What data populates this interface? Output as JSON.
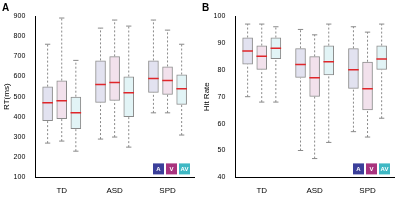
{
  "chart_data": [
    {
      "type": "box",
      "title": "A",
      "y_label": "RT(ms)",
      "categories": [
        "TD",
        "ASD",
        "SPD"
      ],
      "ylim": [
        100,
        900
      ],
      "yticks": [
        100,
        200,
        300,
        400,
        500,
        600,
        700,
        800,
        900
      ],
      "grid": false,
      "legend": "lower right",
      "series": [
        {
          "name": "A",
          "color": "#3b3f9a",
          "boxes": [
            {
              "low": 270,
              "q1": 380,
              "median": 470,
              "q3": 550,
              "high": 760
            },
            {
              "low": 290,
              "q1": 470,
              "median": 560,
              "q3": 680,
              "high": 840
            },
            {
              "low": 420,
              "q1": 520,
              "median": 590,
              "q3": 680,
              "high": 880
            }
          ]
        },
        {
          "name": "V",
          "color": "#a8337e",
          "boxes": [
            {
              "low": 280,
              "q1": 390,
              "median": 480,
              "q3": 580,
              "high": 890
            },
            {
              "low": 300,
              "q1": 480,
              "median": 570,
              "q3": 700,
              "high": 880
            },
            {
              "low": 420,
              "q1": 510,
              "median": 580,
              "q3": 650,
              "high": 830
            }
          ]
        },
        {
          "name": "AV",
          "color": "#3fb8c4",
          "boxes": [
            {
              "low": 230,
              "q1": 340,
              "median": 420,
              "q3": 500,
              "high": 680
            },
            {
              "low": 250,
              "q1": 400,
              "median": 520,
              "q3": 600,
              "high": 850
            },
            {
              "low": 310,
              "q1": 460,
              "median": 540,
              "q3": 610,
              "high": 760
            }
          ]
        }
      ]
    },
    {
      "type": "box",
      "title": "B",
      "y_label": "Hit Rate",
      "categories": [
        "TD",
        "ASD",
        "SPD"
      ],
      "ylim": [
        40,
        100
      ],
      "yticks": [
        40,
        50,
        60,
        70,
        80,
        90,
        100
      ],
      "grid": false,
      "legend": "lower right",
      "series": [
        {
          "name": "A",
          "color": "#3b3f9a",
          "boxes": [
            {
              "low": 70,
              "q1": 82,
              "median": 87,
              "q3": 92,
              "high": 97
            },
            {
              "low": 50,
              "q1": 77,
              "median": 82,
              "q3": 88,
              "high": 95
            },
            {
              "low": 57,
              "q1": 73,
              "median": 80,
              "q3": 88,
              "high": 96
            }
          ]
        },
        {
          "name": "V",
          "color": "#a8337e",
          "boxes": [
            {
              "low": 68,
              "q1": 80,
              "median": 85,
              "q3": 89,
              "high": 97
            },
            {
              "low": 47,
              "q1": 70,
              "median": 77,
              "q3": 85,
              "high": 93
            },
            {
              "low": 55,
              "q1": 65,
              "median": 73,
              "q3": 83,
              "high": 94
            }
          ]
        },
        {
          "name": "AV",
          "color": "#3fb8c4",
          "boxes": [
            {
              "low": 68,
              "q1": 84,
              "median": 88,
              "q3": 92,
              "high": 96
            },
            {
              "low": 53,
              "q1": 78,
              "median": 83,
              "q3": 89,
              "high": 97
            },
            {
              "low": 62,
              "q1": 80,
              "median": 84,
              "q3": 89,
              "high": 97
            }
          ]
        }
      ]
    }
  ]
}
